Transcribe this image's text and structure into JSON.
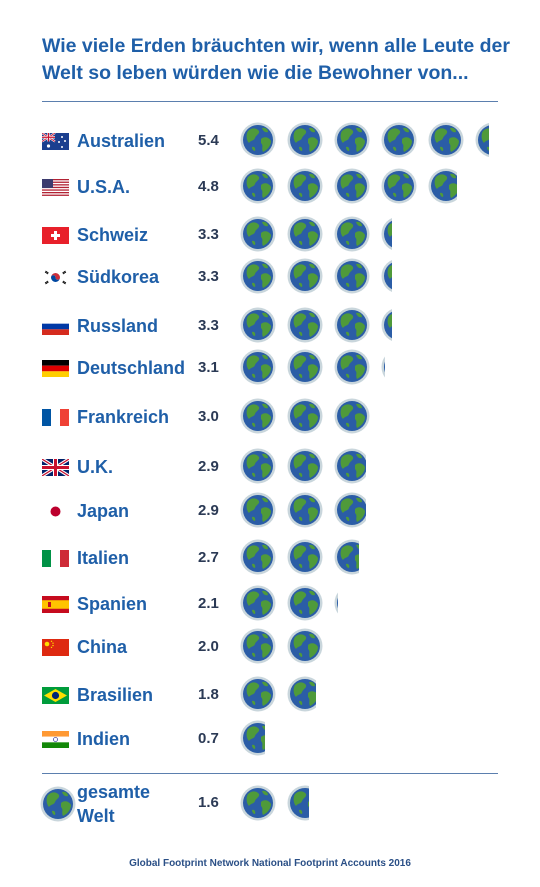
{
  "title": {
    "line1": "Wie viele Erden bräuchten wir, wenn alle Leute der",
    "line2": "Welt so leben würden wie die Bewohner von..."
  },
  "icon": "earth-globe-icon",
  "colors": {
    "text_blue": "#1f5fa8",
    "value_dark": "#2b3a55",
    "ocean": "#2b5da6",
    "land": "#4f9a3a",
    "ring": "#c9d6dc",
    "rule": "#5b7fae"
  },
  "chart_data": {
    "type": "bar",
    "unit": "Erden",
    "categories": [
      "Australien",
      "U.S.A.",
      "Schweiz",
      "Südkorea",
      "Russland",
      "Deutschland",
      "Frankreich",
      "U.K.",
      "Japan",
      "Italien",
      "Spanien",
      "China",
      "Brasilien",
      "Indien"
    ],
    "values": [
      5.4,
      4.8,
      3.3,
      3.3,
      3.3,
      3.1,
      3.0,
      2.9,
      2.9,
      2.7,
      2.1,
      2.0,
      1.8,
      0.7
    ],
    "value_labels": [
      "5.4",
      "4.8",
      "3.3",
      "3.3",
      "3.3",
      "3.1",
      "3.0",
      "2.9",
      "2.9",
      "2.7",
      "2.1",
      "2.0",
      "1.8",
      "0.7"
    ],
    "flags": [
      "australia-flag",
      "usa-flag",
      "switzerland-flag",
      "south-korea-flag",
      "russia-flag",
      "germany-flag",
      "france-flag",
      "uk-flag",
      "japan-flag",
      "italy-flag",
      "spain-flag",
      "china-flag",
      "brazil-flag",
      "india-flag"
    ],
    "total": {
      "label_line1": "gesamte",
      "label_line2": "Welt",
      "value": 1.6,
      "value_label": "1.6"
    }
  },
  "source": "Global Footprint Network National Footprint Accounts 2016"
}
